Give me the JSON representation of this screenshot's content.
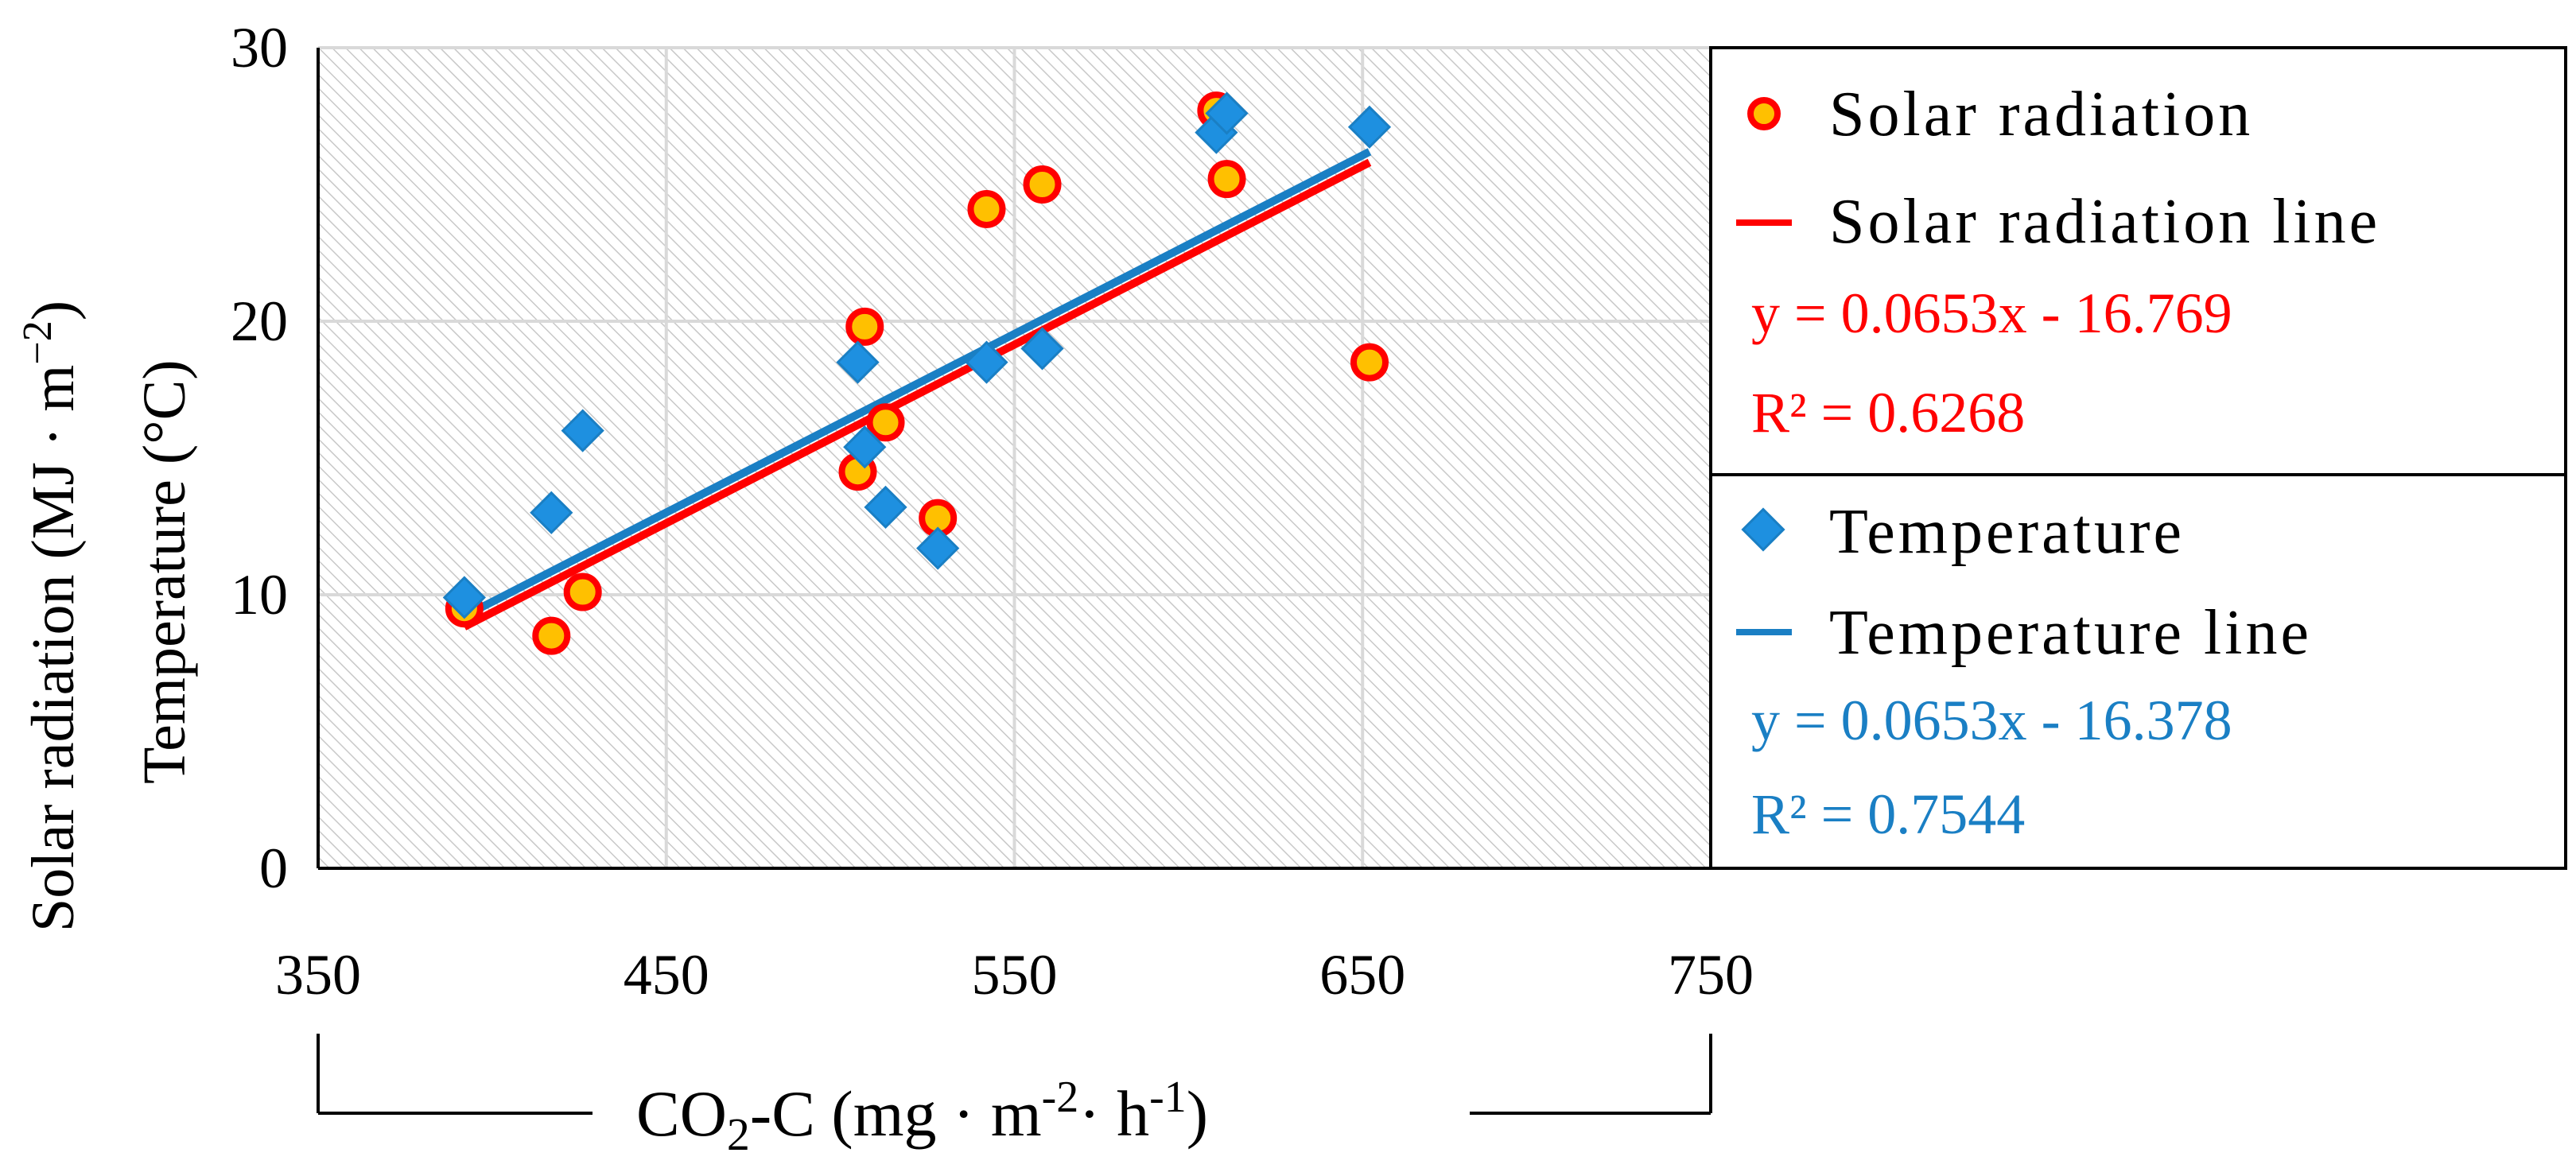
{
  "chart_data": {
    "type": "scatter",
    "xlabel_main": "CO",
    "xlabel_sub": "2",
    "xlabel_rest": "-C  (mg · m",
    "xlabel_sup1": "-2",
    "xlabel_mid": "· h",
    "xlabel_sup2": "-1",
    "xlabel_end": ")",
    "ylabel_line1": "Solar radiation (MJ · m",
    "ylabel_line1_sup": "−2",
    "ylabel_line1_end": ")",
    "ylabel_line2": "Temperature (°C)",
    "xlim": [
      350,
      750
    ],
    "ylim": [
      0,
      30
    ],
    "x_ticks": [
      350,
      450,
      550,
      650,
      750
    ],
    "x_tick_labels": [
      "350",
      "450",
      "550",
      "650",
      "750"
    ],
    "y_ticks": [
      0,
      10,
      20,
      30
    ],
    "y_tick_labels": [
      "0",
      "10",
      "20",
      "30"
    ],
    "grid_x": [
      350,
      450,
      550,
      650
    ],
    "grid_y": [
      0,
      10,
      20,
      30
    ],
    "series": [
      {
        "name": "Solar radiation",
        "marker": "circle",
        "color": "#ff0000",
        "fill": "#ffc000",
        "points": [
          [
            392,
            9.5
          ],
          [
            417,
            8.5
          ],
          [
            426,
            10.1
          ],
          [
            505,
            14.5
          ],
          [
            507,
            19.8
          ],
          [
            513,
            16.3
          ],
          [
            528,
            12.8
          ],
          [
            542,
            24.1
          ],
          [
            558,
            25.0
          ],
          [
            608,
            27.7
          ],
          [
            611,
            25.2
          ],
          [
            652,
            18.5
          ]
        ],
        "fit": {
          "slope": 0.0653,
          "intercept": -16.769,
          "x_range": [
            392,
            652
          ]
        },
        "fit_line_name": "Solar radiation line",
        "equation": "y = 0.0653x - 16.769",
        "r2": "R² = 0.6268"
      },
      {
        "name": "Temperature",
        "marker": "diamond",
        "color": "#1a7fc4",
        "fill": "#1e90e0",
        "points": [
          [
            392,
            9.9
          ],
          [
            417,
            13.0
          ],
          [
            426,
            16.0
          ],
          [
            505,
            18.5
          ],
          [
            507,
            15.4
          ],
          [
            513,
            13.2
          ],
          [
            528,
            11.7
          ],
          [
            542,
            18.5
          ],
          [
            558,
            19.0
          ],
          [
            608,
            26.9
          ],
          [
            611,
            27.6
          ],
          [
            652,
            27.1
          ]
        ],
        "fit": {
          "slope": 0.0653,
          "intercept": -16.378,
          "x_range": [
            392,
            652
          ]
        },
        "fit_line_name": "Temperature line",
        "equation": "y = 0.0653x - 16.378",
        "r2": "R² = 0.7544"
      }
    ]
  }
}
